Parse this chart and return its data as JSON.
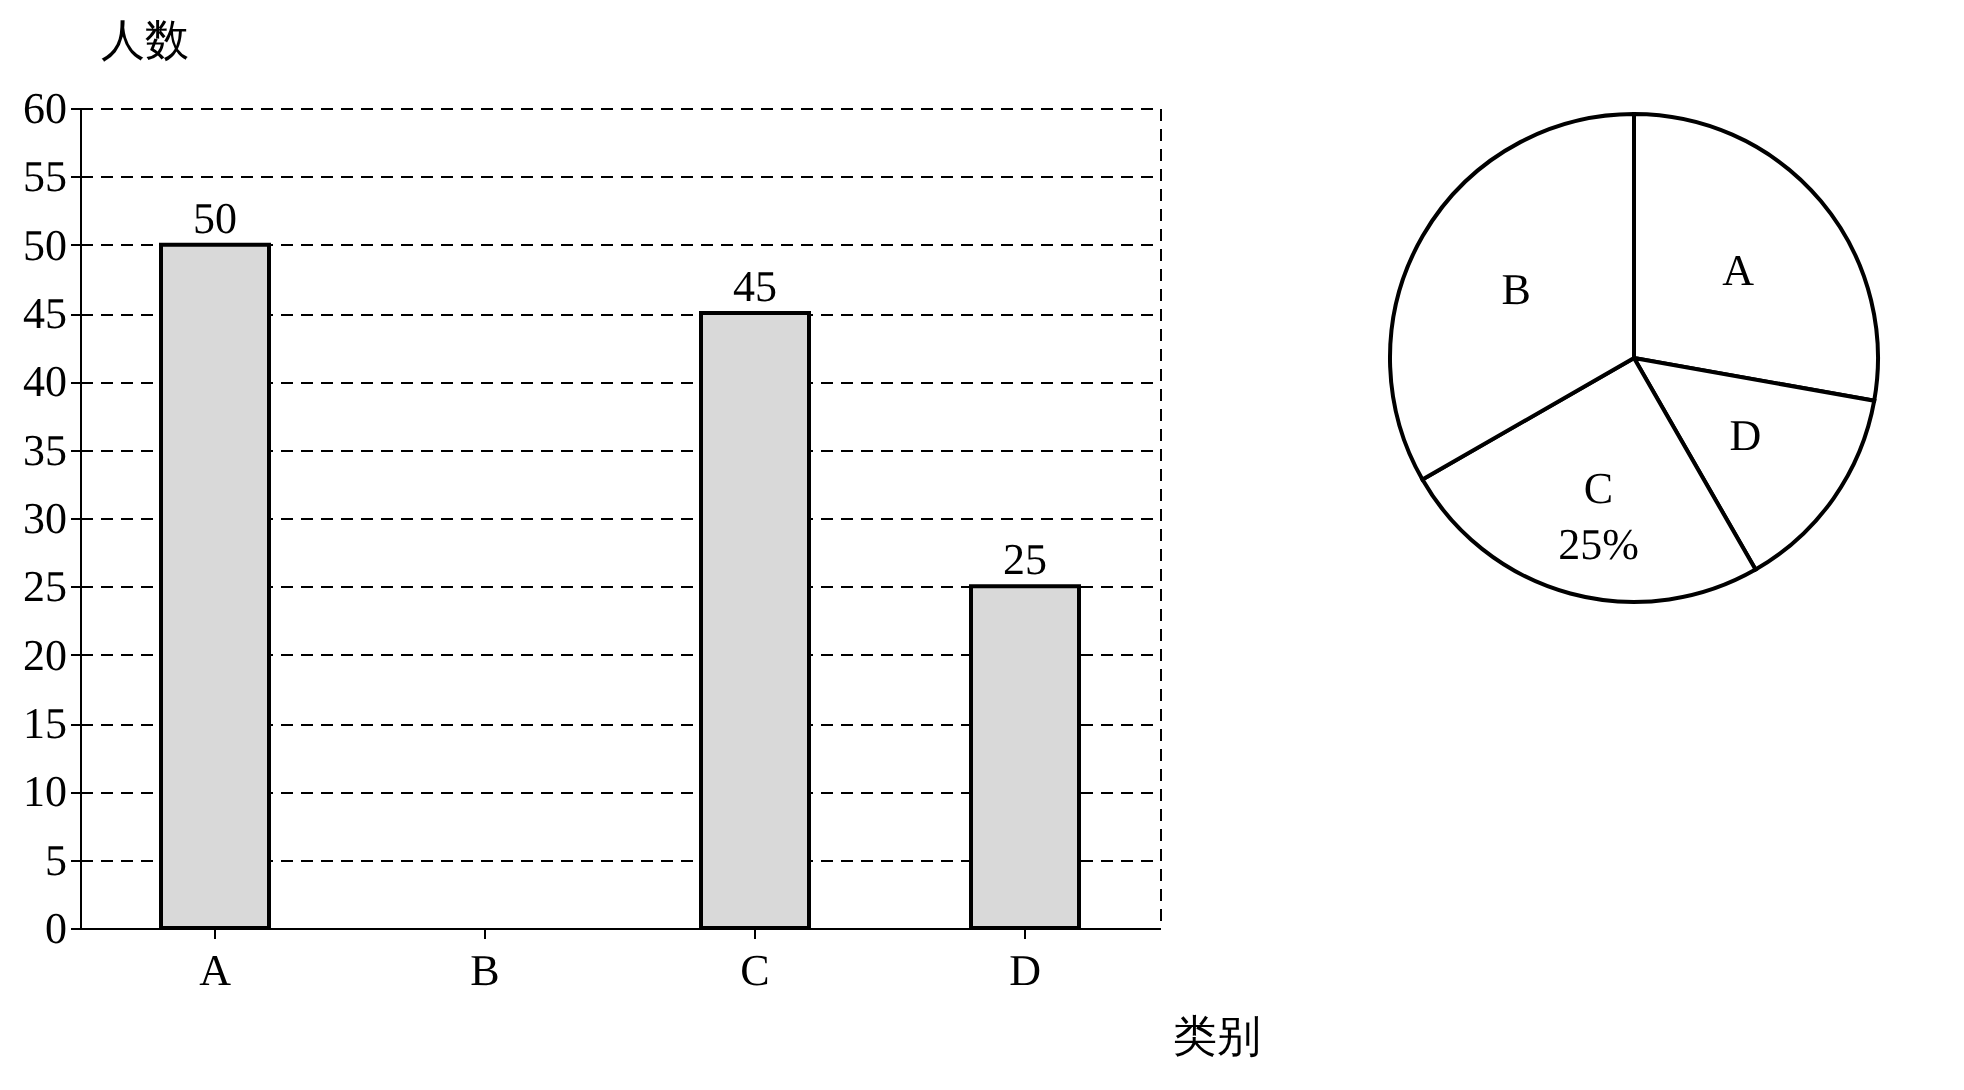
{
  "chart_data": [
    {
      "type": "bar",
      "xlabel": "类别",
      "ylabel": "人数",
      "categories": [
        "A",
        "B",
        "C",
        "D"
      ],
      "values": [
        50,
        null,
        45,
        25
      ],
      "color": "#d9d9d9",
      "ylim": [
        0,
        60
      ],
      "yticks": [
        0,
        5,
        10,
        15,
        20,
        25,
        30,
        35,
        40,
        45,
        50,
        55,
        60
      ],
      "grid": "y",
      "line_style": "dashed",
      "data_labels": true
    },
    {
      "type": "pie",
      "categories": [
        "A",
        "D",
        "C",
        "B"
      ],
      "values": [
        27.8,
        13.9,
        25,
        33.3
      ],
      "value_labels": [
        null,
        null,
        "25%",
        null
      ],
      "colors": [
        "#ffffff",
        "#ffffff",
        "#ffffff",
        "#ffffff"
      ]
    }
  ]
}
